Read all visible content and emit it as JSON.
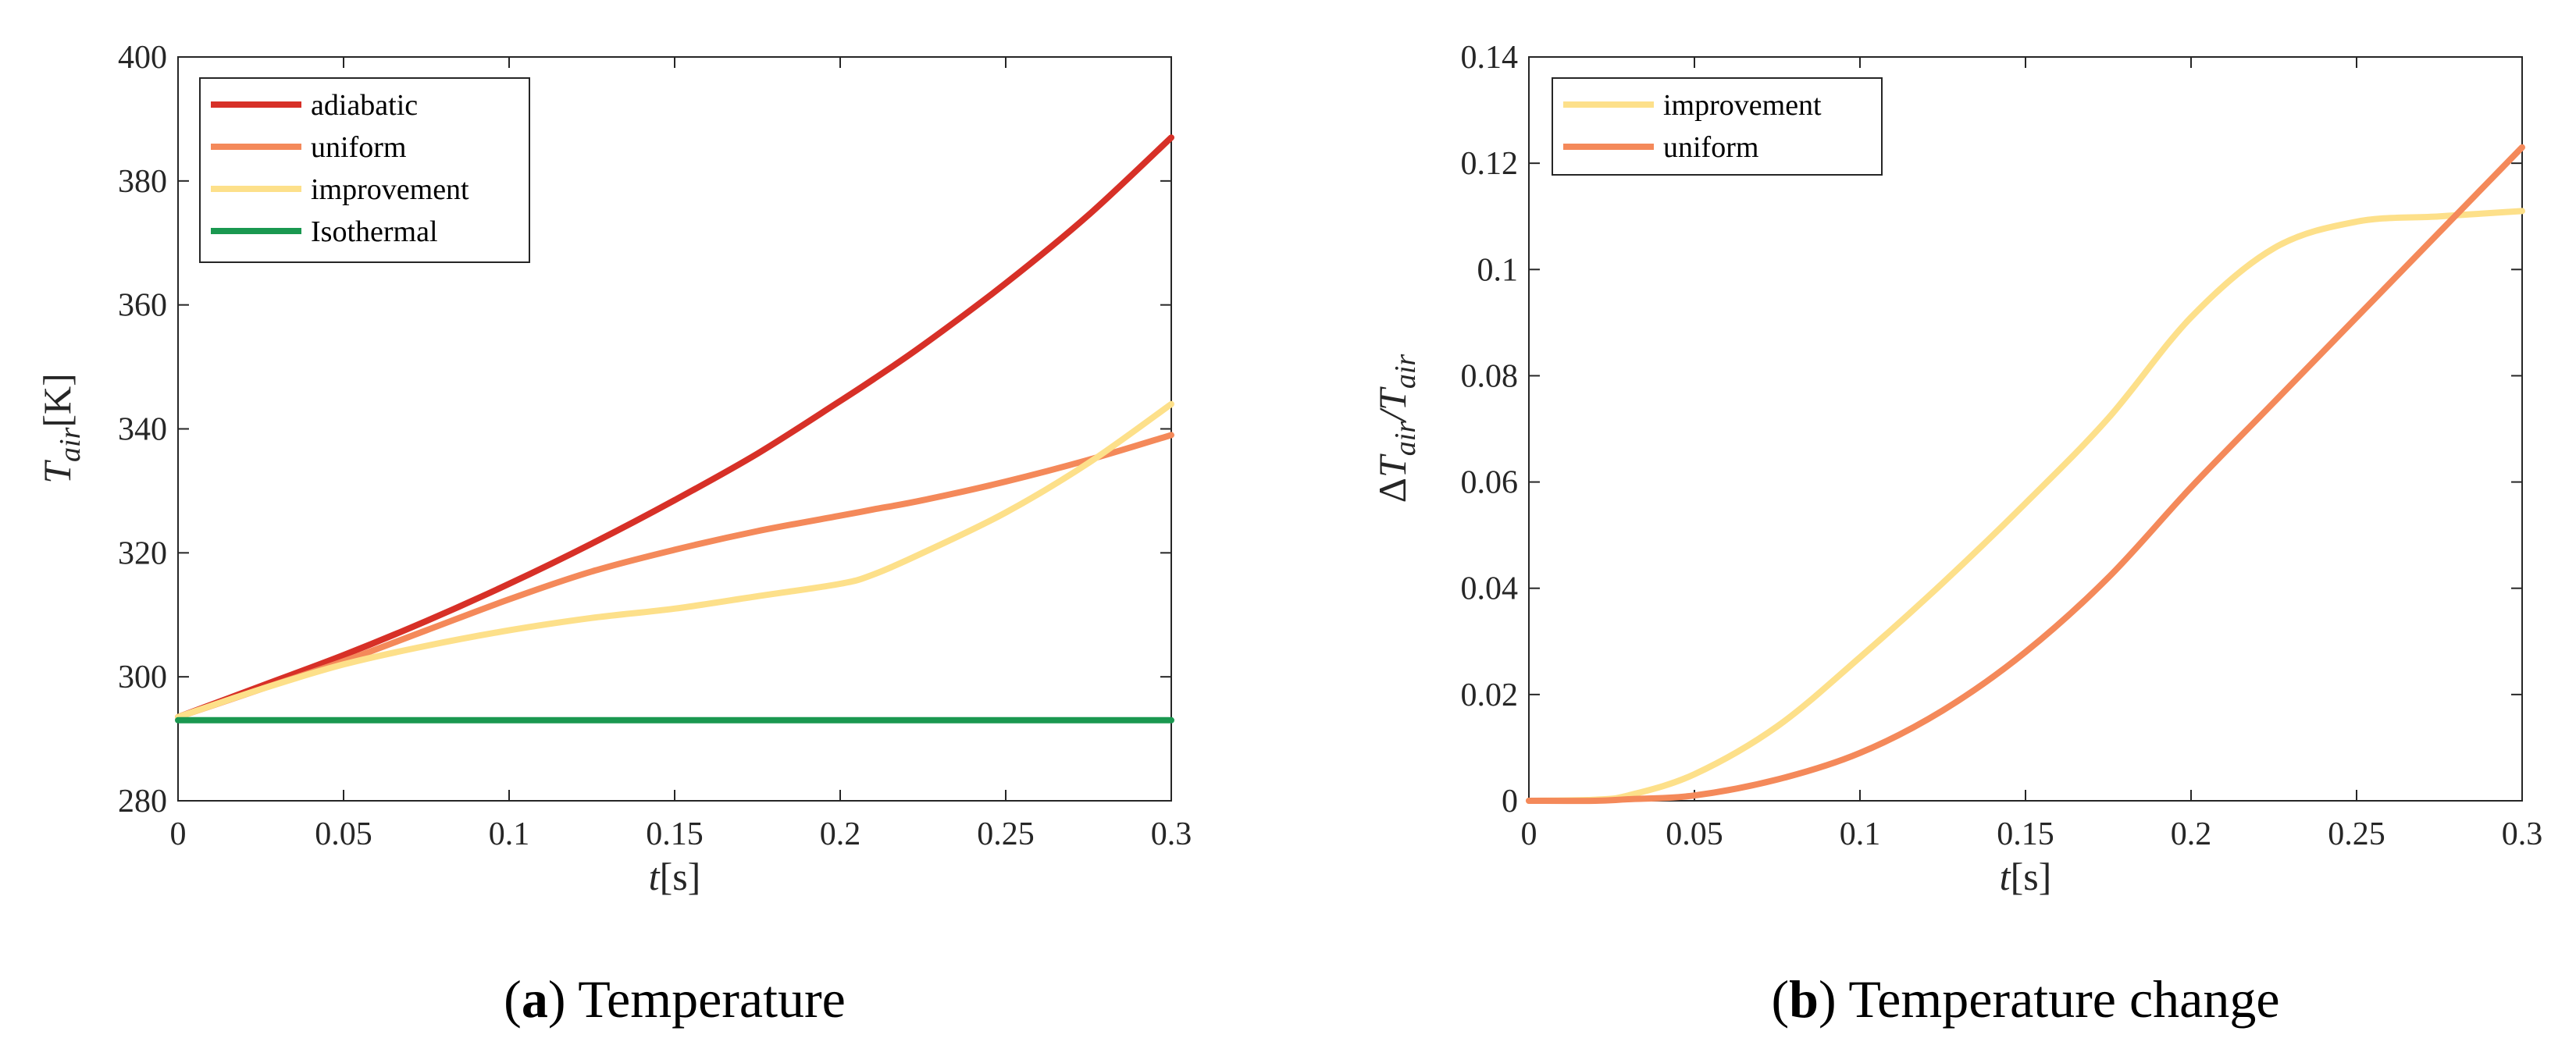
{
  "chart_data": [
    {
      "type": "line",
      "caption_letter": "a",
      "caption_text": "Temperature",
      "xlabel_main": "t",
      "xlabel_unit": "[s]",
      "ylabel_main": "T",
      "ylabel_sub": "air",
      "ylabel_unit": "[K]",
      "xlim": [
        0,
        0.3
      ],
      "ylim": [
        280,
        400
      ],
      "xticks": [
        0,
        0.05,
        0.1,
        0.15,
        0.2,
        0.25,
        0.3
      ],
      "xtick_labels": [
        "0",
        "0.05",
        "0.1",
        "0.15",
        "0.2",
        "0.25",
        "0.3"
      ],
      "yticks": [
        280,
        300,
        320,
        340,
        360,
        380,
        400
      ],
      "ytick_labels": [
        "280",
        "300",
        "320",
        "340",
        "360",
        "380",
        "400"
      ],
      "legend_position": "top-left",
      "x": [
        0,
        0.025,
        0.05,
        0.075,
        0.1,
        0.125,
        0.15,
        0.175,
        0.2,
        0.21,
        0.225,
        0.25,
        0.275,
        0.3
      ],
      "series": [
        {
          "name": "adiabatic",
          "color": "#d73027",
          "values": [
            293.5,
            298.5,
            303.5,
            309,
            315,
            321.5,
            328.5,
            336,
            344.5,
            348,
            353.5,
            363.5,
            374.5,
            387
          ]
        },
        {
          "name": "uniform",
          "color": "#f4895a",
          "values": [
            293.5,
            298,
            302.5,
            307.5,
            312.5,
            317,
            320.5,
            323.5,
            326,
            327,
            328.5,
            331.5,
            335,
            339
          ]
        },
        {
          "name": "improvement",
          "color": "#fde08a",
          "values": [
            293.5,
            298,
            302,
            305,
            307.5,
            309.5,
            311,
            313,
            315,
            316.5,
            320,
            326.5,
            334.5,
            344
          ]
        },
        {
          "name": "Isothermal",
          "color": "#1a9850",
          "values": [
            293,
            293,
            293,
            293,
            293,
            293,
            293,
            293,
            293,
            293,
            293,
            293,
            293,
            293
          ]
        }
      ]
    },
    {
      "type": "line",
      "caption_letter": "b",
      "caption_text": "Temperature change",
      "xlabel_main": "t",
      "xlabel_unit": "[s]",
      "ylabel_delta": "Δ",
      "ylabel_main": "T",
      "ylabel_sub": "air",
      "ylabel_slash": "/",
      "xlim": [
        0,
        0.3
      ],
      "ylim": [
        0,
        0.14
      ],
      "xticks": [
        0,
        0.05,
        0.1,
        0.15,
        0.2,
        0.25,
        0.3
      ],
      "xtick_labels": [
        "0",
        "0.05",
        "0.1",
        "0.15",
        "0.2",
        "0.25",
        "0.3"
      ],
      "yticks": [
        0,
        0.02,
        0.04,
        0.06,
        0.08,
        0.1,
        0.12,
        0.14
      ],
      "ytick_labels": [
        "0",
        "0.02",
        "0.04",
        "0.06",
        "0.08",
        "0.1",
        "0.12",
        "0.14"
      ],
      "legend_position": "top-left",
      "x": [
        0,
        0.02,
        0.03,
        0.05,
        0.075,
        0.1,
        0.125,
        0.15,
        0.175,
        0.2,
        0.225,
        0.25,
        0.275,
        0.3
      ],
      "series": [
        {
          "name": "improvement",
          "color": "#fde08a",
          "values": [
            0,
            0.0002,
            0.001,
            0.005,
            0.014,
            0.027,
            0.041,
            0.056,
            0.072,
            0.091,
            0.104,
            0.109,
            0.11,
            0.111
          ]
        },
        {
          "name": "uniform",
          "color": "#f4895a",
          "values": [
            0,
            0,
            0.0003,
            0.001,
            0.004,
            0.009,
            0.017,
            0.028,
            0.042,
            0.059,
            0.075,
            0.091,
            0.107,
            0.123
          ]
        }
      ]
    }
  ]
}
